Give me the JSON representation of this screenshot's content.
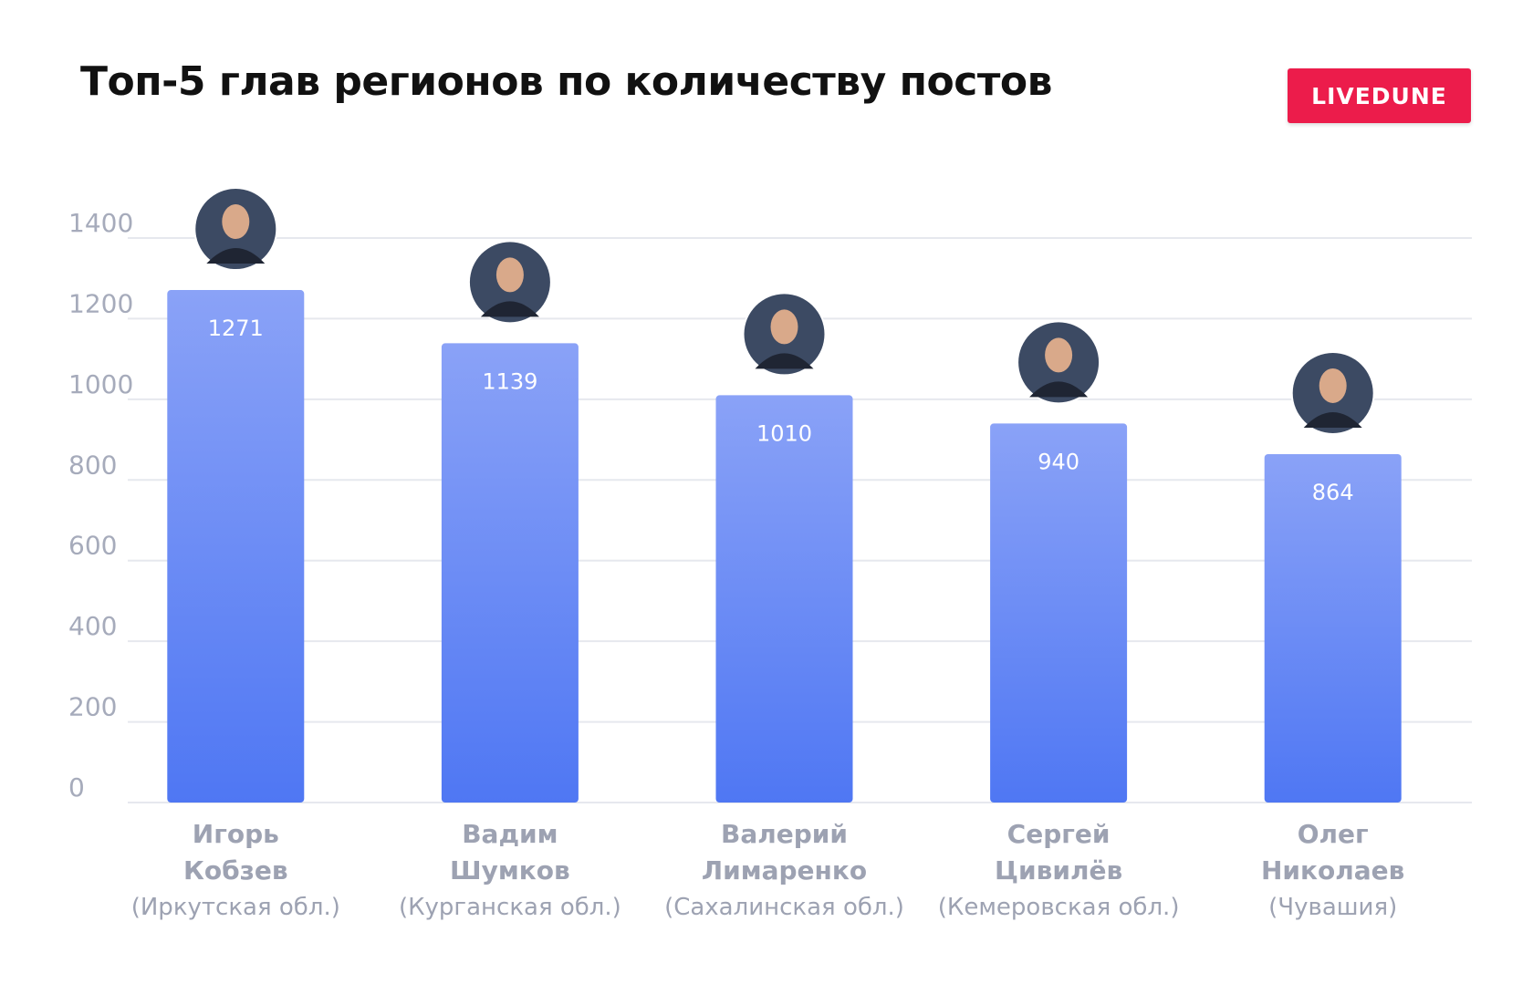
{
  "chart_data": {
    "type": "bar",
    "title": "Топ-5 глав регионов по количеству постов",
    "brand": "LIVEDUNE",
    "categories": [
      "Игорь Кобзев",
      "Вадим Шумков",
      "Валерий Лимаренко",
      "Сергей Цивилёв",
      "Олег Николаев"
    ],
    "subcategories": [
      "(Иркутская обл.)",
      "(Курганская обл.)",
      "(Сахалинская обл.)",
      "(Кемеровская обл.)",
      "(Чувашия)"
    ],
    "values": [
      1271,
      1139,
      1010,
      940,
      864
    ],
    "color": "#5a80f4",
    "ylim": [
      0,
      1400
    ],
    "yticks": [
      0,
      200,
      400,
      600,
      800,
      1000,
      1200,
      1400
    ],
    "grid": true
  }
}
